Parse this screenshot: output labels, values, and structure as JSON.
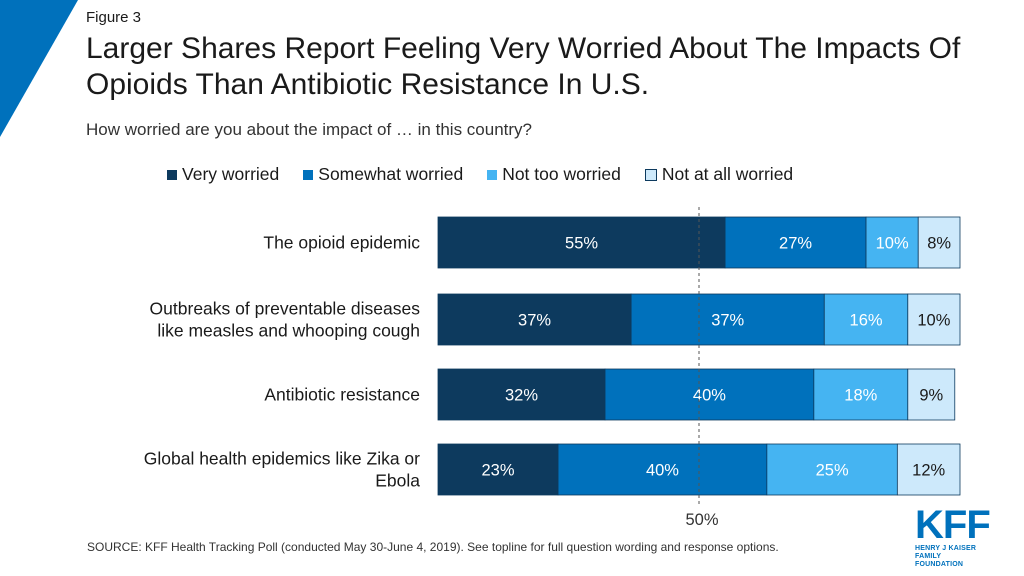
{
  "figure_label": "Figure 3",
  "title": "Larger Shares Report Feeling Very Worried About The Impacts Of Opioids Than Antibiotic Resistance In U.S.",
  "subtitle": "How worried are you about the impact of … in this country?",
  "source": "SOURCE: KFF Health Tracking Poll (conducted May 30-June 4, 2019). See topline for full question wording and response options.",
  "logo": {
    "main": "KFF",
    "line1": "HENRY J KAISER",
    "line2": "FAMILY FOUNDATION"
  },
  "colors": {
    "corner": "#0071bc"
  },
  "chart_data": {
    "type": "bar",
    "orientation": "horizontal",
    "stacked": true,
    "categories": [
      "The opioid epidemic",
      "Outbreaks of preventable diseases like measles and whooping cough",
      "Antibiotic resistance",
      "Global health epidemics like Zika or Ebola"
    ],
    "category_lines": [
      [
        "The opioid epidemic"
      ],
      [
        "Outbreaks of preventable diseases",
        "like measles and whooping cough"
      ],
      [
        "Antibiotic resistance"
      ],
      [
        "Global health epidemics like Zika or",
        "Ebola"
      ]
    ],
    "series": [
      {
        "name": "Very worried",
        "color": "#0d3a5e",
        "label_color": "#ffffff",
        "values": [
          55,
          37,
          32,
          23
        ]
      },
      {
        "name": "Somewhat worried",
        "color": "#0071bc",
        "label_color": "#ffffff",
        "values": [
          27,
          37,
          40,
          40
        ]
      },
      {
        "name": "Not too worried",
        "color": "#45b4f2",
        "label_color": "#ffffff",
        "values": [
          10,
          16,
          18,
          25
        ]
      },
      {
        "name": "Not at all worried",
        "color": "#cde9fb",
        "label_color": "#1a1a1a",
        "values": [
          8,
          10,
          9,
          12
        ]
      }
    ],
    "data_label_suffix": "%",
    "xlim": [
      0,
      100
    ],
    "reference_line": {
      "value": 50,
      "label": "50%"
    },
    "legend": "top"
  }
}
